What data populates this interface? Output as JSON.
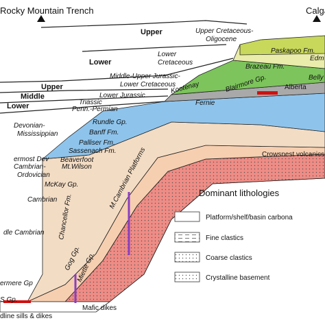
{
  "header": {
    "left": "Rocky Mountain Trench",
    "right": "Calga"
  },
  "ages": [
    "Upper",
    "Upper Cretaceous-",
    "Oligocene",
    "Lower",
    "Lower",
    "Cretaceous",
    "Middle-Upper Jurassic-",
    "Lower Cretaceous",
    "Upper",
    "Middle",
    "Lower",
    "Lower Jurassic",
    "Triassic",
    "Penn.-Permian",
    "Devonian-",
    "Mississippian",
    "ermost Dev",
    "Cambrian-",
    "Ordovician",
    "Cambrian",
    "dle Cambrian"
  ],
  "units": [
    "Paskapoo Fm.",
    "Brazeau Fm.",
    "Edm",
    "Belly",
    "Blairmore Gp.",
    "Kootenay",
    "Fernie",
    "Alberta",
    "Rundle Gp.",
    "Banff Fm.",
    "Palliser Fm.",
    "Sassenach Fm.",
    "Beaverfoot",
    "Mt.Wilson",
    "McKay Gp.",
    "M.Cambrian Platforms",
    "Chancellor Fm.",
    "Gog Gp.",
    "Miette Gp.",
    "ermere Gp",
    "S Gp."
  ],
  "annotations": [
    "Crowsnest volcanics",
    "Mafic dikes",
    "dline sills & dikes"
  ],
  "legend": {
    "title": "Dominant lithologies",
    "items": [
      "Platform/shelf/basin carbona",
      "Fine clastics",
      "Coarse clastics",
      "Crystalline basement"
    ]
  }
}
